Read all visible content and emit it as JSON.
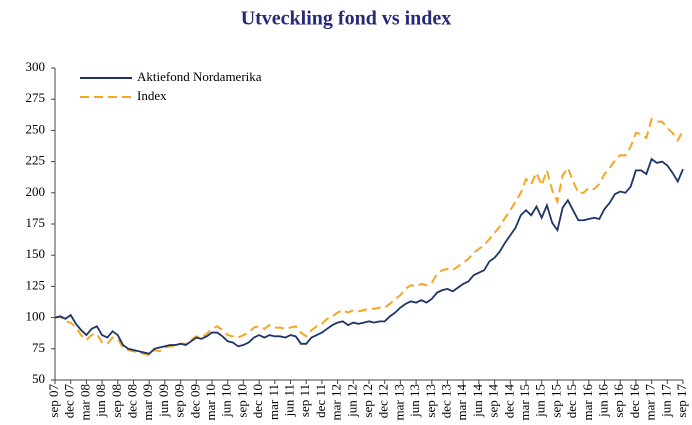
{
  "chart_data": {
    "type": "line",
    "title": "Utveckling fond vs index",
    "categories": [
      "sep 07",
      null,
      null,
      "dec 07",
      null,
      null,
      "mar 08",
      null,
      null,
      "jun 08",
      null,
      null,
      "sep 08",
      null,
      null,
      "dec 08",
      null,
      null,
      "mar 09",
      null,
      null,
      "jun 09",
      null,
      null,
      "sep 09",
      null,
      null,
      "dec 09",
      null,
      null,
      "mar 10",
      null,
      null,
      "jun 10",
      null,
      null,
      "sep 10",
      null,
      null,
      "dec 10",
      null,
      null,
      "mar 11",
      null,
      null,
      "jun 11",
      null,
      null,
      "sep 11",
      null,
      null,
      "dec 11",
      null,
      null,
      "mar 12",
      null,
      null,
      "jun 12",
      null,
      null,
      "sep 12",
      null,
      null,
      "dec 12",
      null,
      null,
      "mar 13",
      null,
      null,
      "jun 13",
      null,
      null,
      "sep 13",
      null,
      null,
      "dec 13",
      null,
      null,
      "mar 14",
      null,
      null,
      "jun 14",
      null,
      null,
      "sep 14",
      null,
      null,
      "dec 14",
      null,
      null,
      "mar 15",
      null,
      null,
      "jun 15",
      null,
      null,
      "sep 15",
      null,
      null,
      "dec 15",
      null,
      null,
      "mar 16",
      null,
      null,
      "jun 16",
      null,
      null,
      "sep 16",
      null,
      null,
      "dec 16",
      null,
      null,
      "mar 17",
      null,
      null,
      "jun 17",
      null,
      null,
      "sep 17"
    ],
    "series": [
      {
        "name": "Aktiefond Nordamerika",
        "color": "#1c3466",
        "dashed": false,
        "values": [
          100,
          101,
          99,
          102,
          95,
          90,
          86,
          91,
          93,
          86,
          84,
          89,
          86,
          78,
          75,
          74,
          73,
          72,
          71,
          75,
          76,
          77,
          78,
          78,
          79,
          78,
          81,
          84,
          83,
          85,
          88,
          88,
          85,
          81,
          80,
          77,
          78,
          80,
          84,
          86,
          84,
          86,
          85,
          85,
          84,
          86,
          85,
          79,
          79,
          84,
          86,
          88,
          91,
          94,
          96,
          97,
          94,
          96,
          95,
          96,
          97,
          96,
          97,
          97,
          101,
          104,
          108,
          111,
          113,
          112,
          114,
          112,
          115,
          120,
          122,
          123,
          121,
          124,
          127,
          129,
          134,
          136,
          138,
          145,
          148,
          153,
          160,
          166,
          172,
          182,
          186,
          182,
          189,
          180,
          190,
          176,
          170,
          188,
          194,
          186,
          178,
          178,
          179,
          180,
          179,
          187,
          192,
          199,
          201,
          200,
          205,
          218,
          218,
          215,
          227,
          224,
          225,
          222,
          216,
          209,
          219
        ]
      },
      {
        "name": "Index",
        "color": "#f5a623",
        "dashed": true,
        "values": [
          100,
          101,
          97,
          96,
          92,
          86,
          82,
          86,
          87,
          80,
          79,
          84,
          83,
          76,
          74,
          73,
          72,
          71,
          70,
          74,
          73,
          76,
          77,
          77,
          79,
          79,
          82,
          85,
          84,
          87,
          91,
          93,
          90,
          86,
          85,
          84,
          86,
          88,
          92,
          93,
          91,
          94,
          92,
          92,
          91,
          92,
          93,
          88,
          85,
          90,
          93,
          95,
          99,
          101,
          104,
          106,
          104,
          106,
          105,
          106,
          107,
          107,
          108,
          108,
          111,
          115,
          118,
          123,
          126,
          125,
          127,
          126,
          128,
          135,
          138,
          139,
          138,
          141,
          144,
          147,
          152,
          155,
          158,
          163,
          168,
          173,
          180,
          186,
          193,
          200,
          211,
          207,
          216,
          206,
          218,
          202,
          193,
          214,
          220,
          209,
          200,
          200,
          204,
          203,
          207,
          215,
          220,
          226,
          230,
          230,
          237,
          248,
          247,
          244,
          259,
          257,
          257,
          252,
          248,
          242,
          250
        ]
      }
    ],
    "ylim": [
      50,
      300
    ],
    "yticks": [
      50,
      75,
      100,
      125,
      150,
      175,
      200,
      225,
      250,
      275,
      300
    ],
    "grid": false,
    "legend": "top-left"
  }
}
